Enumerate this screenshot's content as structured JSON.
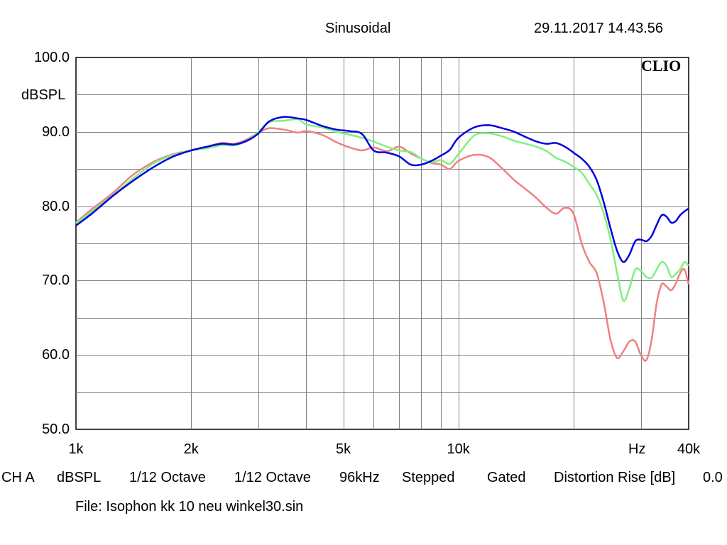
{
  "header": {
    "title": "Sinusoidal",
    "datetime": "29.11.2017 14.43.56"
  },
  "brand": "CLIO",
  "footer": {
    "channel": "CH A",
    "unit": "dBSPL",
    "smoothing_1": "1/12 Octave",
    "smoothing_2": "1/12 Octave",
    "sample_rate": "96kHz",
    "mode": "Stepped",
    "gating": "Gated",
    "distortion_label": "Distortion Rise [dB]",
    "distortion_value": "0.0",
    "file": "File: Isophon kk 10 neu winkel30.sin"
  },
  "colors": {
    "grid": "#808080",
    "red": "#f08080",
    "green": "#80f080",
    "blue": "#0000e0"
  },
  "chart_data": {
    "type": "line",
    "title": "Sinusoidal",
    "ylabel": "dBSPL",
    "xlabel": "Hz",
    "x_scale": "log",
    "xlim": [
      1000,
      40000
    ],
    "ylim": [
      50,
      100
    ],
    "grid": true,
    "y_ticks": [
      {
        "value": 100,
        "label": "100.0"
      },
      {
        "value": 90,
        "label": "90.0"
      },
      {
        "value": 80,
        "label": "80.0"
      },
      {
        "value": 70,
        "label": "70.0"
      },
      {
        "value": 60,
        "label": "60.0"
      },
      {
        "value": 50,
        "label": "50.0"
      }
    ],
    "x_ticks": [
      {
        "value": 1000,
        "label": "1k"
      },
      {
        "value": 2000,
        "label": "2k"
      },
      {
        "value": 5000,
        "label": "5k"
      },
      {
        "value": 10000,
        "label": "10k"
      },
      {
        "value": 40000,
        "label": "40k"
      }
    ],
    "x_grid": [
      2000,
      3000,
      4000,
      5000,
      6000,
      7000,
      8000,
      9000,
      10000,
      20000,
      30000
    ],
    "series": [
      {
        "name": "red",
        "color": "#f08080",
        "x": [
          1000,
          1100,
          1250,
          1400,
          1600,
          1800,
          2000,
          2200,
          2400,
          2600,
          2800,
          3000,
          3200,
          3500,
          3800,
          4000,
          4400,
          4800,
          5200,
          5600,
          6000,
          6500,
          7000,
          7500,
          8000,
          8500,
          9000,
          9500,
          10000,
          11000,
          12000,
          13000,
          14000,
          15000,
          16000,
          17000,
          18000,
          19000,
          20000,
          21000,
          22000,
          23000,
          24000,
          25000,
          26000,
          27000,
          28000,
          29000,
          30000,
          31000,
          32000,
          33000,
          34000,
          35000,
          36000,
          37000,
          38000,
          39000,
          40000
        ],
        "values": [
          77.8,
          79.6,
          81.8,
          84.1,
          86.0,
          87.0,
          87.5,
          88.0,
          88.5,
          88.4,
          89.0,
          89.9,
          90.5,
          90.3,
          89.9,
          90.1,
          89.6,
          88.6,
          87.9,
          87.5,
          87.9,
          87.4,
          88.0,
          87.1,
          86.4,
          85.8,
          85.6,
          85.0,
          86.1,
          86.9,
          86.6,
          85.1,
          83.5,
          82.3,
          81.1,
          79.8,
          79.0,
          79.8,
          79.0,
          75.0,
          72.5,
          71.0,
          67.0,
          62.0,
          59.6,
          60.5,
          61.8,
          61.8,
          60.0,
          59.3,
          62.0,
          67.0,
          69.5,
          69.2,
          68.7,
          69.6,
          71.0,
          71.5,
          69.5
        ]
      },
      {
        "name": "green",
        "color": "#80f080",
        "x": [
          1000,
          1100,
          1250,
          1400,
          1600,
          1800,
          2000,
          2200,
          2400,
          2600,
          2800,
          3000,
          3200,
          3500,
          3800,
          4000,
          4400,
          4800,
          5200,
          5600,
          6000,
          6500,
          7000,
          7500,
          8000,
          8500,
          9000,
          9500,
          10000,
          11000,
          12000,
          13000,
          14000,
          15000,
          16000,
          17000,
          18000,
          19000,
          20000,
          21000,
          22000,
          23000,
          24000,
          25000,
          26000,
          27000,
          28000,
          29000,
          30000,
          31000,
          32000,
          33000,
          34000,
          35000,
          36000,
          37000,
          38000,
          39000,
          40000
        ],
        "values": [
          77.7,
          79.3,
          81.5,
          83.6,
          85.8,
          86.9,
          87.5,
          87.8,
          88.2,
          88.2,
          88.8,
          90.0,
          91.3,
          91.5,
          91.7,
          91.0,
          90.6,
          90.0,
          89.6,
          89.2,
          88.7,
          88.0,
          87.5,
          87.3,
          86.4,
          85.9,
          86.2,
          85.7,
          87.0,
          89.5,
          89.8,
          89.4,
          88.8,
          88.4,
          88.0,
          87.4,
          86.5,
          86.0,
          85.3,
          84.5,
          83.0,
          81.5,
          79.0,
          75.5,
          71.0,
          67.3,
          69.0,
          71.5,
          71.3,
          70.5,
          70.4,
          71.5,
          72.5,
          72.0,
          70.5,
          70.9,
          71.5,
          72.5,
          72.0
        ]
      },
      {
        "name": "blue",
        "color": "#0000e0",
        "x": [
          1000,
          1100,
          1250,
          1400,
          1600,
          1800,
          2000,
          2200,
          2400,
          2600,
          2800,
          3000,
          3200,
          3500,
          3800,
          4000,
          4400,
          4800,
          5200,
          5600,
          6000,
          6500,
          7000,
          7500,
          8000,
          8500,
          9000,
          9500,
          10000,
          11000,
          12000,
          13000,
          14000,
          15000,
          16000,
          17000,
          18000,
          19000,
          20000,
          21000,
          22000,
          23000,
          24000,
          25000,
          26000,
          27000,
          28000,
          29000,
          30000,
          31000,
          32000,
          33000,
          34000,
          35000,
          36000,
          37000,
          38000,
          39000,
          40000
        ],
        "values": [
          77.4,
          79.0,
          81.4,
          83.3,
          85.3,
          86.7,
          87.5,
          88.0,
          88.4,
          88.3,
          88.8,
          89.8,
          91.4,
          92.0,
          91.8,
          91.6,
          90.8,
          90.3,
          90.1,
          89.7,
          87.5,
          87.2,
          86.7,
          85.6,
          85.6,
          86.1,
          86.8,
          87.6,
          89.2,
          90.6,
          90.9,
          90.5,
          90.0,
          89.3,
          88.7,
          88.4,
          88.5,
          88.0,
          87.2,
          86.4,
          85.3,
          83.5,
          80.5,
          77.0,
          74.0,
          72.5,
          73.5,
          75.3,
          75.5,
          75.3,
          76.0,
          77.5,
          78.8,
          78.6,
          77.8,
          78.0,
          78.8,
          79.3,
          79.7
        ]
      }
    ]
  }
}
